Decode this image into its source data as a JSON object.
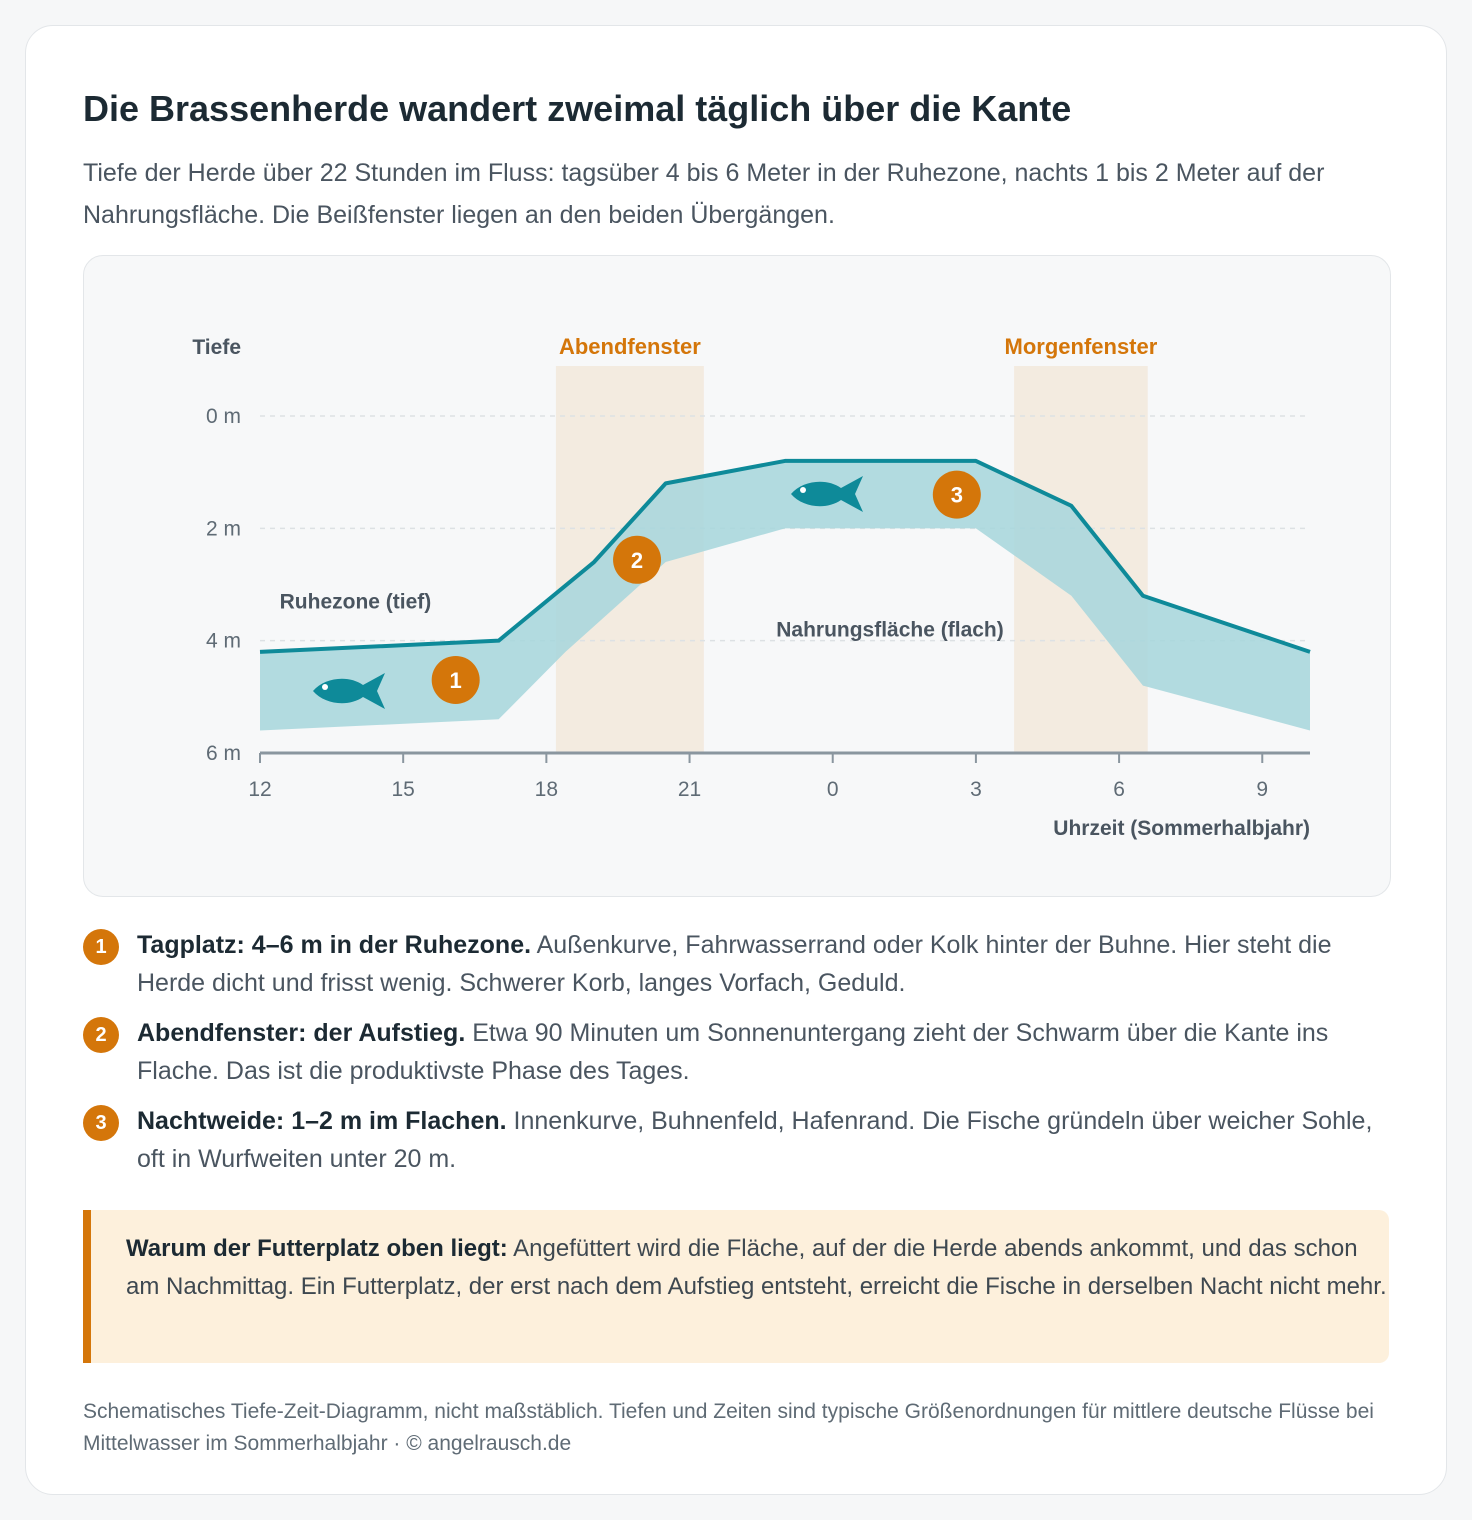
{
  "header": {
    "title": "Die Brassenherde wandert zweimal täglich über die Kante",
    "subtitle": "Tiefe der Herde über 22 Stunden im Fluss: tagsüber 4 bis 6 Meter in der Ruhezone, nachts 1 bis 2 Meter auf der Nahrungsfläche. Die Beißfenster liegen an den beiden Übergängen."
  },
  "chart_data": {
    "type": "band",
    "ylabel": "Tiefe",
    "xlabel": "Uhrzeit (Sommerhalbjahr)",
    "x": [
      12,
      17,
      19,
      20.5,
      23,
      27,
      29,
      30.5,
      34
    ],
    "x_lower": [
      12,
      17,
      18.4,
      20.5,
      23,
      27,
      29,
      30.5,
      34
    ],
    "series": [
      {
        "color": "#0e8a99",
        "values": [
          4.2,
          4.0,
          2.6,
          1.2,
          0.8,
          0.8,
          1.6,
          3.2,
          4.2
        ]
      },
      {
        "color": "#a6d6dc",
        "values": [
          5.6,
          5.4,
          4.2,
          2.6,
          2.0,
          2.0,
          3.2,
          4.8,
          5.6
        ]
      }
    ],
    "xlim": [
      12,
      34
    ],
    "ylim": [
      0,
      6
    ],
    "y_inverted": true,
    "grid": true,
    "xticks": [
      12,
      15,
      18,
      21,
      {
        "value": 24,
        "label": "0"
      },
      {
        "value": 27,
        "label": "3"
      },
      {
        "value": 30,
        "label": "6"
      },
      {
        "value": 33,
        "label": "9"
      }
    ],
    "yticks": [
      {
        "value": 0,
        "label": "0 m"
      },
      {
        "value": 2,
        "label": "2 m"
      },
      {
        "value": 4,
        "label": "4 m"
      },
      {
        "value": 6,
        "label": "6 m"
      }
    ],
    "windows": [
      {
        "label": "Abendfenster",
        "start": 18.2,
        "end": 21.3,
        "color": "#f3ebe0",
        "label_color": "#d4760a"
      },
      {
        "label": "Morgenfenster",
        "start": 27.8,
        "end": 30.6,
        "color": "#f3ebe0",
        "label_color": "#d4760a"
      }
    ],
    "markers": [
      {
        "label": "1",
        "x": 16.1,
        "y": 4.7
      },
      {
        "label": "2",
        "x": 19.9,
        "y": 2.56
      },
      {
        "label": "3",
        "x": 26.6,
        "y": 1.4
      }
    ],
    "marker_color": "#d4760a",
    "region_labels": [
      {
        "label": "Ruhezone (tief)",
        "x": 14,
        "y": 3.3
      },
      {
        "label": "Nahrungsfläche (flach)",
        "x": 25.2,
        "y": 3.8
      }
    ]
  },
  "items": [
    {
      "number": "1",
      "lead": "Tagplatz: 4–6 m in der Ruhezone.",
      "text": "Außenkurve, Fahrwasserrand oder Kolk hinter der Buhne. Hier steht die Herde dicht und frisst wenig. Schwerer Korb, langes Vorfach, Geduld."
    },
    {
      "number": "2",
      "lead": "Abendfenster: der Aufstieg.",
      "text": "Etwa 90 Minuten um Sonnenuntergang zieht der Schwarm über die Kante ins Flache. Das ist die produktivste Phase des Tages."
    },
    {
      "number": "3",
      "lead": "Nachtweide: 1–2 m im Flachen.",
      "text": "Innenkurve, Buhnenfeld, Hafenrand. Die Fische gründeln über weicher Sohle, oft in Wurfweiten unter 20 m."
    }
  ],
  "note": {
    "lead": "Warum der Futterplatz oben liegt:",
    "text": "Angefüttert wird die Fläche, auf der die Herde abends ankommt, und das schon am Nachmittag. Ein Futterplatz, der erst nach dem Aufstieg entsteht, erreicht die Fische in derselben Nacht nicht mehr."
  },
  "footer": "Schematisches Tiefe-Zeit-Diagramm, nicht maßstäblich. Tiefen und Zeiten sind typische Größenordnungen für mittlere deutsche Flüsse bei Mittelwasser im Sommerhalbjahr · © angelrausch.de"
}
